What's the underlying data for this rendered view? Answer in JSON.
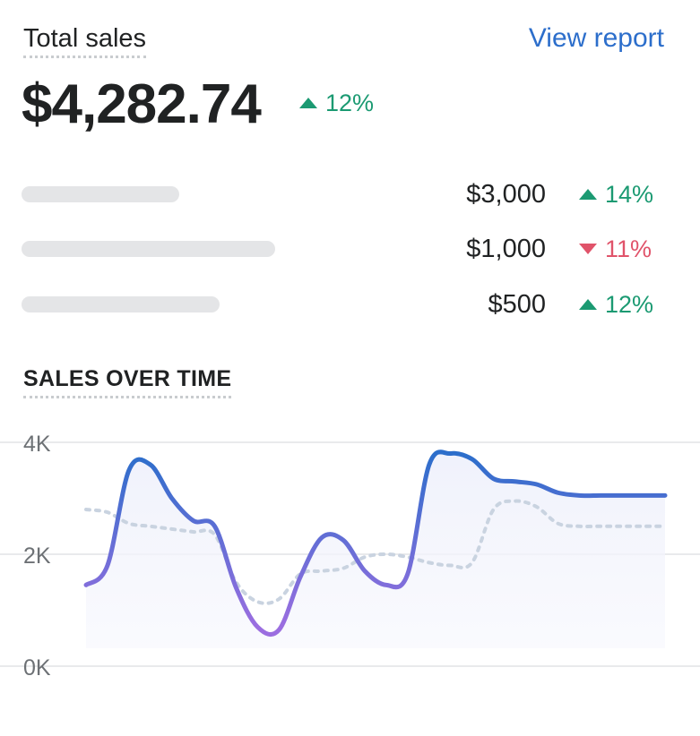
{
  "header": {
    "title": "Total sales",
    "view_report_label": "View report"
  },
  "summary": {
    "amount": "$4,282.74",
    "change": "12%",
    "change_direction": "up",
    "up_color": "#1b9a72",
    "down_color": "#e0536a",
    "link_color": "#2c6ecb"
  },
  "breakdown": [
    {
      "value": "$3,000",
      "change": "14%",
      "direction": "up"
    },
    {
      "value": "$1,000",
      "change": "11%",
      "direction": "down"
    },
    {
      "value": "$500",
      "change": "12%",
      "direction": "up"
    }
  ],
  "chart_section": {
    "title": "SALES OVER TIME"
  },
  "chart_data": {
    "type": "line",
    "title": "SALES OVER TIME",
    "xlabel": "",
    "ylabel": "",
    "ylim": [
      0,
      4000
    ],
    "yticks": [
      "4K",
      "2K",
      "0K"
    ],
    "ytick_values": [
      4000,
      2000,
      0
    ],
    "grid": true,
    "x": [
      0,
      1,
      2,
      3,
      4,
      5,
      6,
      7,
      8,
      9,
      10,
      11,
      12,
      13,
      14,
      15,
      16,
      17,
      18,
      19,
      20,
      21,
      22,
      23,
      24,
      25,
      26,
      27
    ],
    "series": [
      {
        "style": "solid-gradient",
        "color_start": "#2c6ecb",
        "color_end": "#9b6ee0",
        "values": [
          1450,
          1800,
          3500,
          3600,
          3000,
          2600,
          2500,
          1400,
          700,
          650,
          1600,
          2300,
          2250,
          1700,
          1450,
          1650,
          3600,
          3800,
          3700,
          3350,
          3300,
          3250,
          3100,
          3050,
          3050,
          3050,
          3050,
          3050
        ]
      },
      {
        "style": "dashed",
        "color": "#c9d3e0",
        "values": [
          2800,
          2750,
          2550,
          2500,
          2450,
          2400,
          2350,
          1500,
          1150,
          1200,
          1650,
          1700,
          1750,
          1950,
          2000,
          1950,
          1850,
          1800,
          1850,
          2800,
          2950,
          2850,
          2550,
          2500,
          2500,
          2500,
          2500,
          2500
        ]
      }
    ]
  }
}
